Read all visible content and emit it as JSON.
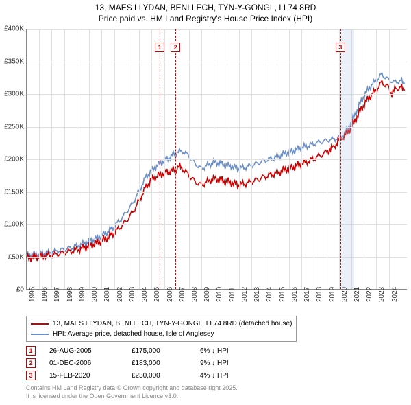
{
  "title_line1": "13, MAES LLYDAN, BENLLECH, TYN-Y-GONGL, LL74 8RD",
  "title_line2": "Price paid vs. HM Land Registry's House Price Index (HPI)",
  "chart": {
    "type": "line",
    "x_domain": [
      1995,
      2025.5
    ],
    "y_domain": [
      0,
      400000
    ],
    "ylim": [
      0,
      400000
    ],
    "ytick_step": 50000,
    "yticks": [
      {
        "v": 0,
        "label": "£0"
      },
      {
        "v": 50000,
        "label": "£50K"
      },
      {
        "v": 100000,
        "label": "£100K"
      },
      {
        "v": 150000,
        "label": "£150K"
      },
      {
        "v": 200000,
        "label": "£200K"
      },
      {
        "v": 250000,
        "label": "£250K"
      },
      {
        "v": 300000,
        "label": "£300K"
      },
      {
        "v": 350000,
        "label": "£350K"
      },
      {
        "v": 400000,
        "label": "£400K"
      }
    ],
    "xticks": [
      1995,
      1996,
      1997,
      1998,
      1999,
      2000,
      2001,
      2002,
      2003,
      2004,
      2005,
      2006,
      2007,
      2008,
      2009,
      2010,
      2011,
      2012,
      2013,
      2014,
      2015,
      2016,
      2017,
      2018,
      2019,
      2020,
      2021,
      2022,
      2023,
      2024
    ],
    "background_color": "#ffffff",
    "grid_color": "#e0e0e0",
    "line_width": 1.6,
    "series": [
      {
        "name": "price_paid",
        "color": "#cc0000",
        "label": "13, MAES LLYDAN, BENLLECH, TYN-Y-GONGL, LL74 8RD (detached house)",
        "points": [
          [
            1995.0,
            48000
          ],
          [
            1995.5,
            49000
          ],
          [
            1996.0,
            50000
          ],
          [
            1996.5,
            51500
          ],
          [
            1997.0,
            52000
          ],
          [
            1997.5,
            54000
          ],
          [
            1998.0,
            56000
          ],
          [
            1998.5,
            58000
          ],
          [
            1999.0,
            60000
          ],
          [
            1999.5,
            63000
          ],
          [
            2000.0,
            66000
          ],
          [
            2000.5,
            70000
          ],
          [
            2001.0,
            74000
          ],
          [
            2001.5,
            79000
          ],
          [
            2002.0,
            86000
          ],
          [
            2002.5,
            95000
          ],
          [
            2003.0,
            105000
          ],
          [
            2003.5,
            118000
          ],
          [
            2004.0,
            135000
          ],
          [
            2004.5,
            155000
          ],
          [
            2005.0,
            168000
          ],
          [
            2005.3,
            172000
          ],
          [
            2005.65,
            175000
          ],
          [
            2006.0,
            178000
          ],
          [
            2006.5,
            181000
          ],
          [
            2006.92,
            183000
          ],
          [
            2007.2,
            188000
          ],
          [
            2007.5,
            185000
          ],
          [
            2008.0,
            175000
          ],
          [
            2008.5,
            165000
          ],
          [
            2009.0,
            160000
          ],
          [
            2009.5,
            165000
          ],
          [
            2010.0,
            170000
          ],
          [
            2010.5,
            168000
          ],
          [
            2011.0,
            165000
          ],
          [
            2011.5,
            163000
          ],
          [
            2012.0,
            160000
          ],
          [
            2012.5,
            162000
          ],
          [
            2013.0,
            165000
          ],
          [
            2013.5,
            168000
          ],
          [
            2014.0,
            172000
          ],
          [
            2014.5,
            175000
          ],
          [
            2015.0,
            178000
          ],
          [
            2015.5,
            182000
          ],
          [
            2016.0,
            185000
          ],
          [
            2016.5,
            188000
          ],
          [
            2017.0,
            192000
          ],
          [
            2017.5,
            196000
          ],
          [
            2018.0,
            200000
          ],
          [
            2018.5,
            205000
          ],
          [
            2019.0,
            210000
          ],
          [
            2019.3,
            214000
          ],
          [
            2019.6,
            218000
          ],
          [
            2019.9,
            225000
          ],
          [
            2020.12,
            230000
          ],
          [
            2020.5,
            235000
          ],
          [
            2021.0,
            248000
          ],
          [
            2021.5,
            265000
          ],
          [
            2022.0,
            282000
          ],
          [
            2022.5,
            295000
          ],
          [
            2023.0,
            305000
          ],
          [
            2023.5,
            318000
          ],
          [
            2024.0,
            310000
          ],
          [
            2024.3,
            300000
          ],
          [
            2024.6,
            308000
          ],
          [
            2025.0,
            310000
          ],
          [
            2025.3,
            305000
          ]
        ]
      },
      {
        "name": "hpi",
        "color": "#6b8fc7",
        "label": "HPI: Average price, detached house, Isle of Anglesey",
        "points": [
          [
            1995.0,
            52000
          ],
          [
            1995.5,
            53000
          ],
          [
            1996.0,
            54000
          ],
          [
            1996.5,
            55500
          ],
          [
            1997.0,
            57000
          ],
          [
            1997.5,
            59000
          ],
          [
            1998.0,
            61000
          ],
          [
            1998.5,
            63000
          ],
          [
            1999.0,
            66000
          ],
          [
            1999.5,
            69000
          ],
          [
            2000.0,
            73000
          ],
          [
            2000.5,
            77000
          ],
          [
            2001.0,
            82000
          ],
          [
            2001.5,
            88000
          ],
          [
            2002.0,
            96000
          ],
          [
            2002.5,
            106000
          ],
          [
            2003.0,
            118000
          ],
          [
            2003.5,
            132000
          ],
          [
            2004.0,
            150000
          ],
          [
            2004.5,
            170000
          ],
          [
            2005.0,
            182000
          ],
          [
            2005.5,
            190000
          ],
          [
            2006.0,
            197000
          ],
          [
            2006.5,
            203000
          ],
          [
            2007.0,
            210000
          ],
          [
            2007.5,
            212000
          ],
          [
            2008.0,
            205000
          ],
          [
            2008.5,
            193000
          ],
          [
            2009.0,
            185000
          ],
          [
            2009.5,
            190000
          ],
          [
            2010.0,
            195000
          ],
          [
            2010.5,
            193000
          ],
          [
            2011.0,
            190000
          ],
          [
            2011.5,
            188000
          ],
          [
            2012.0,
            185000
          ],
          [
            2012.5,
            187000
          ],
          [
            2013.0,
            190000
          ],
          [
            2013.5,
            193000
          ],
          [
            2014.0,
            197000
          ],
          [
            2014.5,
            200000
          ],
          [
            2015.0,
            203000
          ],
          [
            2015.5,
            207000
          ],
          [
            2016.0,
            210000
          ],
          [
            2016.5,
            213000
          ],
          [
            2017.0,
            217000
          ],
          [
            2017.5,
            220000
          ],
          [
            2018.0,
            223000
          ],
          [
            2018.5,
            226000
          ],
          [
            2019.0,
            228000
          ],
          [
            2019.5,
            230000
          ],
          [
            2020.0,
            232000
          ],
          [
            2020.5,
            238000
          ],
          [
            2021.0,
            255000
          ],
          [
            2021.5,
            275000
          ],
          [
            2022.0,
            295000
          ],
          [
            2022.5,
            310000
          ],
          [
            2023.0,
            320000
          ],
          [
            2023.5,
            330000
          ],
          [
            2024.0,
            322000
          ],
          [
            2024.5,
            318000
          ],
          [
            2025.0,
            320000
          ],
          [
            2025.3,
            315000
          ]
        ]
      }
    ],
    "markers": [
      {
        "idx": "1",
        "x": 2005.65
      },
      {
        "idx": "2",
        "x": 2006.92
      },
      {
        "idx": "3",
        "x": 2020.12
      }
    ],
    "shade_bands": [
      {
        "from": 2020.12,
        "to": 2021.2
      }
    ]
  },
  "legend_items": [
    {
      "color": "#cc0000",
      "label": "13, MAES LLYDAN, BENLLECH, TYN-Y-GONGL, LL74 8RD (detached house)"
    },
    {
      "color": "#6b8fc7",
      "label": "HPI: Average price, detached house, Isle of Anglesey"
    }
  ],
  "sales": [
    {
      "idx": "1",
      "date": "26-AUG-2005",
      "price": "£175,000",
      "delta": "6% ↓ HPI"
    },
    {
      "idx": "2",
      "date": "01-DEC-2006",
      "price": "£183,000",
      "delta": "9% ↓ HPI"
    },
    {
      "idx": "3",
      "date": "15-FEB-2020",
      "price": "£230,000",
      "delta": "4% ↓ HPI"
    }
  ],
  "footnote_line1": "Contains HM Land Registry data © Crown copyright and database right 2025.",
  "footnote_line2": "It is licensed under the Open Government Licence v3.0."
}
